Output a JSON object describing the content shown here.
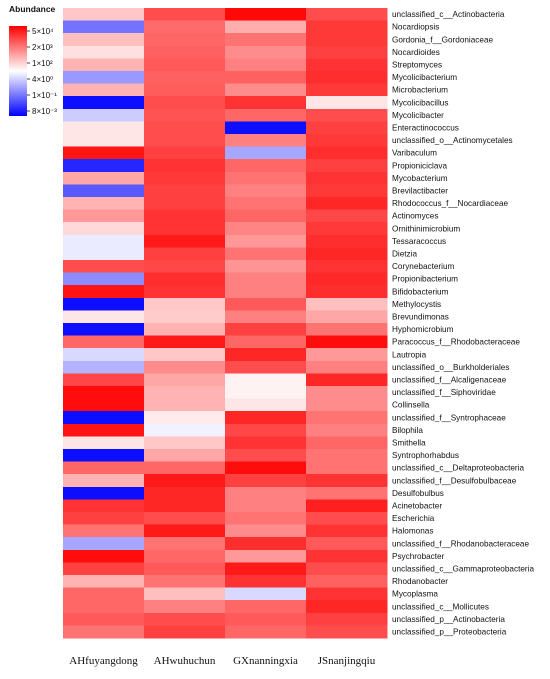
{
  "chart_data": {
    "type": "heatmap",
    "legend": {
      "title": "Abundance",
      "ticks": [
        "5×10⁴",
        "2×10³",
        "1×10²",
        "4×10⁰",
        "1×10⁻¹",
        "8×10⁻³"
      ],
      "colors": [
        "#ff0000",
        "#ffffff",
        "#0000ff"
      ],
      "placement": "top-left"
    },
    "columns": [
      "AHfuyangdong",
      "AHwuhuchun",
      "GXnanningxia",
      "JSnanjingqiu"
    ],
    "rows": [
      "unclassified_c__Actinobacteria",
      "Nocardiopsis",
      "Gordonia_f__Gordoniaceae",
      "Nocardioides",
      "Streptomyces",
      "Mycolicibacterium",
      "Microbacterium",
      "Mycolicibacillus",
      "Mycolicibacter",
      "Enteractinococcus",
      "unclassified_o__Actinomycetales",
      "Varibaculum",
      "Propioniciclava",
      "Mycobacterium",
      "Brevilactibacter",
      "Rhodococcus_f__Nocardiaceae",
      "Actinomyces",
      "Ornithinimicrobium",
      "Tessaracoccus",
      "Dietzia",
      "Corynebacterium",
      "Propionibacterium",
      "Bifidobacterium",
      "Methylocystis",
      "Brevundimonas",
      "Hyphomicrobium",
      "Paracoccus_f__Rhodobacteraceae",
      "Lautropia",
      "unclassified_o__Burkholderiales",
      "unclassified_f__Alcaligenaceae",
      "unclassified_f__Siphoviridae",
      "Collinsella",
      "unclassified_f__Syntrophaceae",
      "Bilophila",
      "Smithella",
      "Syntrophorhabdus",
      "unclassified_c__Deltaproteobacteria",
      "unclassified_f__Desulfobulbaceae",
      "Desulfobulbus",
      "Acinetobacter",
      "Escherichia",
      "Halomonas",
      "unclassified_f__Rhodanobacteraceae",
      "Psychrobacter",
      "unclassified_c__Gammaproteobacteria",
      "Rhodanobacter",
      "Mycoplasma",
      "unclassified_c__Mollicutes",
      "unclassified_p__Actinobacteria",
      "unclassified_p__Proteobacteria"
    ],
    "values": [
      [
        0.22,
        0.7,
        0.97,
        0.7
      ],
      [
        -0.55,
        0.58,
        0.32,
        0.78
      ],
      [
        0.25,
        0.6,
        0.55,
        0.78
      ],
      [
        0.12,
        0.62,
        0.45,
        0.75
      ],
      [
        0.3,
        0.65,
        0.5,
        0.8
      ],
      [
        -0.4,
        0.62,
        0.62,
        0.82
      ],
      [
        0.3,
        0.64,
        0.45,
        0.78
      ],
      [
        -0.95,
        0.7,
        0.8,
        0.1
      ],
      [
        -0.2,
        0.68,
        0.6,
        0.7
      ],
      [
        0.1,
        0.7,
        -0.95,
        0.75
      ],
      [
        0.1,
        0.7,
        0.5,
        0.78
      ],
      [
        0.92,
        0.75,
        -0.35,
        0.82
      ],
      [
        -0.85,
        0.8,
        0.6,
        0.75
      ],
      [
        0.35,
        0.78,
        0.55,
        0.8
      ],
      [
        -0.65,
        0.75,
        0.5,
        0.78
      ],
      [
        0.3,
        0.75,
        0.55,
        0.85
      ],
      [
        0.4,
        0.8,
        0.6,
        0.72
      ],
      [
        0.15,
        0.8,
        0.48,
        0.78
      ],
      [
        -0.08,
        0.9,
        0.4,
        0.82
      ],
      [
        -0.08,
        0.75,
        0.55,
        0.85
      ],
      [
        0.7,
        0.72,
        0.42,
        0.8
      ],
      [
        -0.45,
        0.82,
        0.5,
        0.84
      ],
      [
        0.92,
        0.8,
        0.5,
        0.82
      ],
      [
        -0.95,
        0.22,
        0.65,
        0.25
      ],
      [
        0.1,
        0.2,
        0.5,
        0.35
      ],
      [
        -0.95,
        0.3,
        0.75,
        0.55
      ],
      [
        0.6,
        0.9,
        0.6,
        0.95
      ],
      [
        -0.15,
        0.22,
        0.85,
        0.4
      ],
      [
        -0.3,
        0.45,
        0.7,
        0.5
      ],
      [
        0.72,
        0.35,
        0.05,
        0.85
      ],
      [
        0.95,
        0.3,
        0.05,
        0.45
      ],
      [
        0.95,
        0.3,
        0.1,
        0.45
      ],
      [
        -0.95,
        0.08,
        0.85,
        0.55
      ],
      [
        0.92,
        -0.05,
        0.72,
        0.5
      ],
      [
        0.1,
        0.22,
        0.8,
        0.6
      ],
      [
        -0.95,
        0.35,
        0.7,
        0.55
      ],
      [
        0.6,
        0.6,
        0.95,
        0.55
      ],
      [
        0.3,
        0.9,
        0.75,
        0.8
      ],
      [
        -0.95,
        0.85,
        0.5,
        0.55
      ],
      [
        0.8,
        0.85,
        0.5,
        0.88
      ],
      [
        0.75,
        0.7,
        0.55,
        0.7
      ],
      [
        0.55,
        0.9,
        0.45,
        0.8
      ],
      [
        -0.35,
        0.55,
        0.82,
        0.65
      ],
      [
        0.95,
        0.6,
        0.4,
        0.8
      ],
      [
        0.75,
        0.65,
        0.9,
        0.7
      ],
      [
        0.3,
        0.55,
        0.8,
        0.62
      ],
      [
        0.6,
        0.25,
        -0.15,
        0.8
      ],
      [
        0.6,
        0.5,
        0.6,
        0.85
      ],
      [
        0.65,
        0.7,
        0.65,
        0.75
      ],
      [
        0.55,
        0.75,
        0.6,
        0.7
      ]
    ]
  }
}
